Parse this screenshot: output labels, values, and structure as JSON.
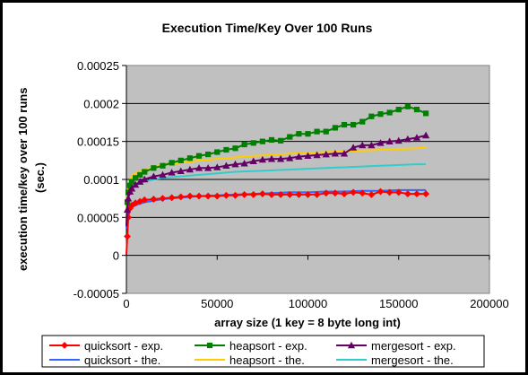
{
  "chart_data": {
    "type": "line",
    "title": "Execution Time/Key Over 100 Runs",
    "xlabel": "array size (1 key = 8 byte long int)",
    "ylabel": "execution time/key over 100 runs (sec.)",
    "ylabel_lines": [
      "execution time/key over 100 runs",
      "(sec.)"
    ],
    "xlim": [
      0,
      200000
    ],
    "ylim": [
      -5e-05,
      0.00025
    ],
    "x_ticks": [
      {
        "value": 0,
        "label": "0"
      },
      {
        "value": 50000,
        "label": "50000"
      },
      {
        "value": 100000,
        "label": "100000"
      },
      {
        "value": 150000,
        "label": "150000"
      },
      {
        "value": 200000,
        "label": "200000"
      }
    ],
    "y_ticks": [
      {
        "value": 0.00025,
        "label": "0.00025"
      },
      {
        "value": 0.0002,
        "label": "0.0002"
      },
      {
        "value": 0.00015,
        "label": "0.00015"
      },
      {
        "value": 0.0001,
        "label": "0.0001"
      },
      {
        "value": 5e-05,
        "label": "0.00005"
      },
      {
        "value": 0,
        "label": "0"
      },
      {
        "value": -5e-05,
        "label": "-0.00005"
      }
    ],
    "grid": "horizontal",
    "plot_background": "#c0c0c0",
    "legend_position": "bottom",
    "series": [
      {
        "name": "quicksort - exp.",
        "color": "#ff0000",
        "marker": "diamond",
        "x": [
          0,
          500,
          1000,
          2000,
          3000,
          5000,
          7500,
          10000,
          15000,
          20000,
          25000,
          30000,
          35000,
          40000,
          45000,
          50000,
          55000,
          60000,
          65000,
          70000,
          75000,
          80000,
          85000,
          90000,
          95000,
          100000,
          105000,
          110000,
          115000,
          120000,
          125000,
          130000,
          135000,
          140000,
          145000,
          150000,
          155000,
          160000,
          165000
        ],
        "y": [
          1e-06,
          2.5e-05,
          5e-05,
          6.2e-05,
          6.6e-05,
          6.9e-05,
          7.1e-05,
          7.3e-05,
          7.4e-05,
          7.5e-05,
          7.6e-05,
          7.7e-05,
          7.8e-05,
          7.8e-05,
          7.8e-05,
          7.8e-05,
          7.9e-05,
          7.9e-05,
          8e-05,
          8e-05,
          8.1e-05,
          8e-05,
          8e-05,
          8e-05,
          8e-05,
          8e-05,
          8e-05,
          8.2e-05,
          8.2e-05,
          8.1e-05,
          8.3e-05,
          8.2e-05,
          8e-05,
          8.4e-05,
          8.3e-05,
          8.3e-05,
          8.1e-05,
          8.1e-05,
          8.1e-05
        ]
      },
      {
        "name": "heapsort - exp.",
        "color": "#008000",
        "marker": "square",
        "x": [
          0,
          500,
          1000,
          2000,
          3000,
          5000,
          7500,
          10000,
          15000,
          20000,
          25000,
          30000,
          35000,
          40000,
          45000,
          50000,
          55000,
          60000,
          65000,
          70000,
          75000,
          80000,
          85000,
          90000,
          95000,
          100000,
          105000,
          110000,
          115000,
          120000,
          125000,
          130000,
          135000,
          140000,
          145000,
          150000,
          155000,
          160000,
          165000
        ],
        "y": [
          4e-05,
          7e-05,
          8.3e-05,
          9.2e-05,
          9.7e-05,
          0.000102,
          0.000106,
          0.00011,
          0.000115,
          0.000118,
          0.000122,
          0.000125,
          0.000128,
          0.000131,
          0.000133,
          0.000136,
          0.000139,
          0.000141,
          0.000146,
          0.000148,
          0.00015,
          0.000152,
          0.000151,
          0.000156,
          0.00016,
          0.00016,
          0.000163,
          0.000163,
          0.000168,
          0.000172,
          0.000172,
          0.000176,
          0.000183,
          0.000186,
          0.000188,
          0.000192,
          0.000196,
          0.000192,
          0.000187
        ]
      },
      {
        "name": "mergesort - exp.",
        "color": "#660066",
        "marker": "triangle",
        "x": [
          0,
          500,
          1000,
          2000,
          3000,
          5000,
          7500,
          10000,
          15000,
          20000,
          25000,
          30000,
          35000,
          40000,
          45000,
          50000,
          55000,
          60000,
          65000,
          70000,
          75000,
          80000,
          85000,
          90000,
          95000,
          100000,
          105000,
          110000,
          115000,
          120000,
          125000,
          130000,
          135000,
          140000,
          145000,
          150000,
          155000,
          160000,
          165000
        ],
        "y": [
          3.8e-05,
          6e-05,
          7.5e-05,
          8.4e-05,
          8.8e-05,
          9.3e-05,
          9.7e-05,
          0.0001,
          0.000104,
          0.000106,
          0.000109,
          0.000111,
          0.000113,
          0.000115,
          0.000115,
          0.000116,
          0.000118,
          0.00012,
          0.000121,
          0.000124,
          0.000126,
          0.000127,
          0.000127,
          0.000128,
          0.00013,
          0.000131,
          0.000132,
          0.000133,
          0.000134,
          0.000134,
          0.000142,
          0.000145,
          0.000145,
          0.000148,
          0.00015,
          0.000151,
          0.000153,
          0.000155,
          0.000158
        ]
      },
      {
        "name": "quicksort - the.",
        "color": "#3366ff",
        "marker": "none",
        "x": [
          0,
          500,
          1000,
          2000,
          3000,
          5000,
          7500,
          10000,
          15000,
          20000,
          30000,
          40000,
          50000,
          60000,
          70000,
          80000,
          90000,
          100000,
          110000,
          120000,
          130000,
          140000,
          150000,
          160000,
          165000
        ],
        "y": [
          3.5e-05,
          5e-05,
          5.5e-05,
          6e-05,
          6.3e-05,
          6.6e-05,
          6.8e-05,
          7e-05,
          7.2e-05,
          7.4e-05,
          7.6e-05,
          7.8e-05,
          7.9e-05,
          8e-05,
          8.1e-05,
          8.2e-05,
          8.3e-05,
          8.3e-05,
          8.4e-05,
          8.4e-05,
          8.5e-05,
          8.5e-05,
          8.6e-05,
          8.6e-05,
          8.6e-05
        ]
      },
      {
        "name": "heapsort - the.",
        "color": "#ffcc00",
        "marker": "none",
        "x": [
          0,
          500,
          1000,
          2000,
          3000,
          5000,
          7500,
          10000,
          15000,
          20000,
          30000,
          40000,
          50000,
          60000,
          70000,
          80000,
          90000,
          100000,
          110000,
          120000,
          130000,
          140000,
          150000,
          160000,
          165000
        ],
        "y": [
          6e-05,
          8.5e-05,
          9.3e-05,
          0.0001,
          0.000104,
          0.000108,
          0.000111,
          0.000113,
          0.000116,
          0.000119,
          0.000122,
          0.000125,
          0.000127,
          0.000129,
          0.000131,
          0.000132,
          0.000134,
          0.000135,
          0.000136,
          0.000137,
          0.000138,
          0.000139,
          0.00014,
          0.000141,
          0.000142
        ]
      },
      {
        "name": "mergesort - the.",
        "color": "#33cccc",
        "marker": "none",
        "x": [
          0,
          500,
          1000,
          2000,
          3000,
          5000,
          7500,
          10000,
          15000,
          20000,
          30000,
          40000,
          50000,
          60000,
          70000,
          80000,
          90000,
          100000,
          110000,
          120000,
          130000,
          140000,
          150000,
          160000,
          165000
        ],
        "y": [
          5e-05,
          7e-05,
          7.8e-05,
          8.5e-05,
          8.8e-05,
          9.2e-05,
          9.5e-05,
          9.7e-05,
          0.0001,
          0.000102,
          0.000104,
          0.000106,
          0.000108,
          0.00011,
          0.000111,
          0.000112,
          0.000113,
          0.000114,
          0.000115,
          0.000116,
          0.000117,
          0.000118,
          0.000119,
          0.00012,
          0.00012
        ]
      }
    ]
  }
}
